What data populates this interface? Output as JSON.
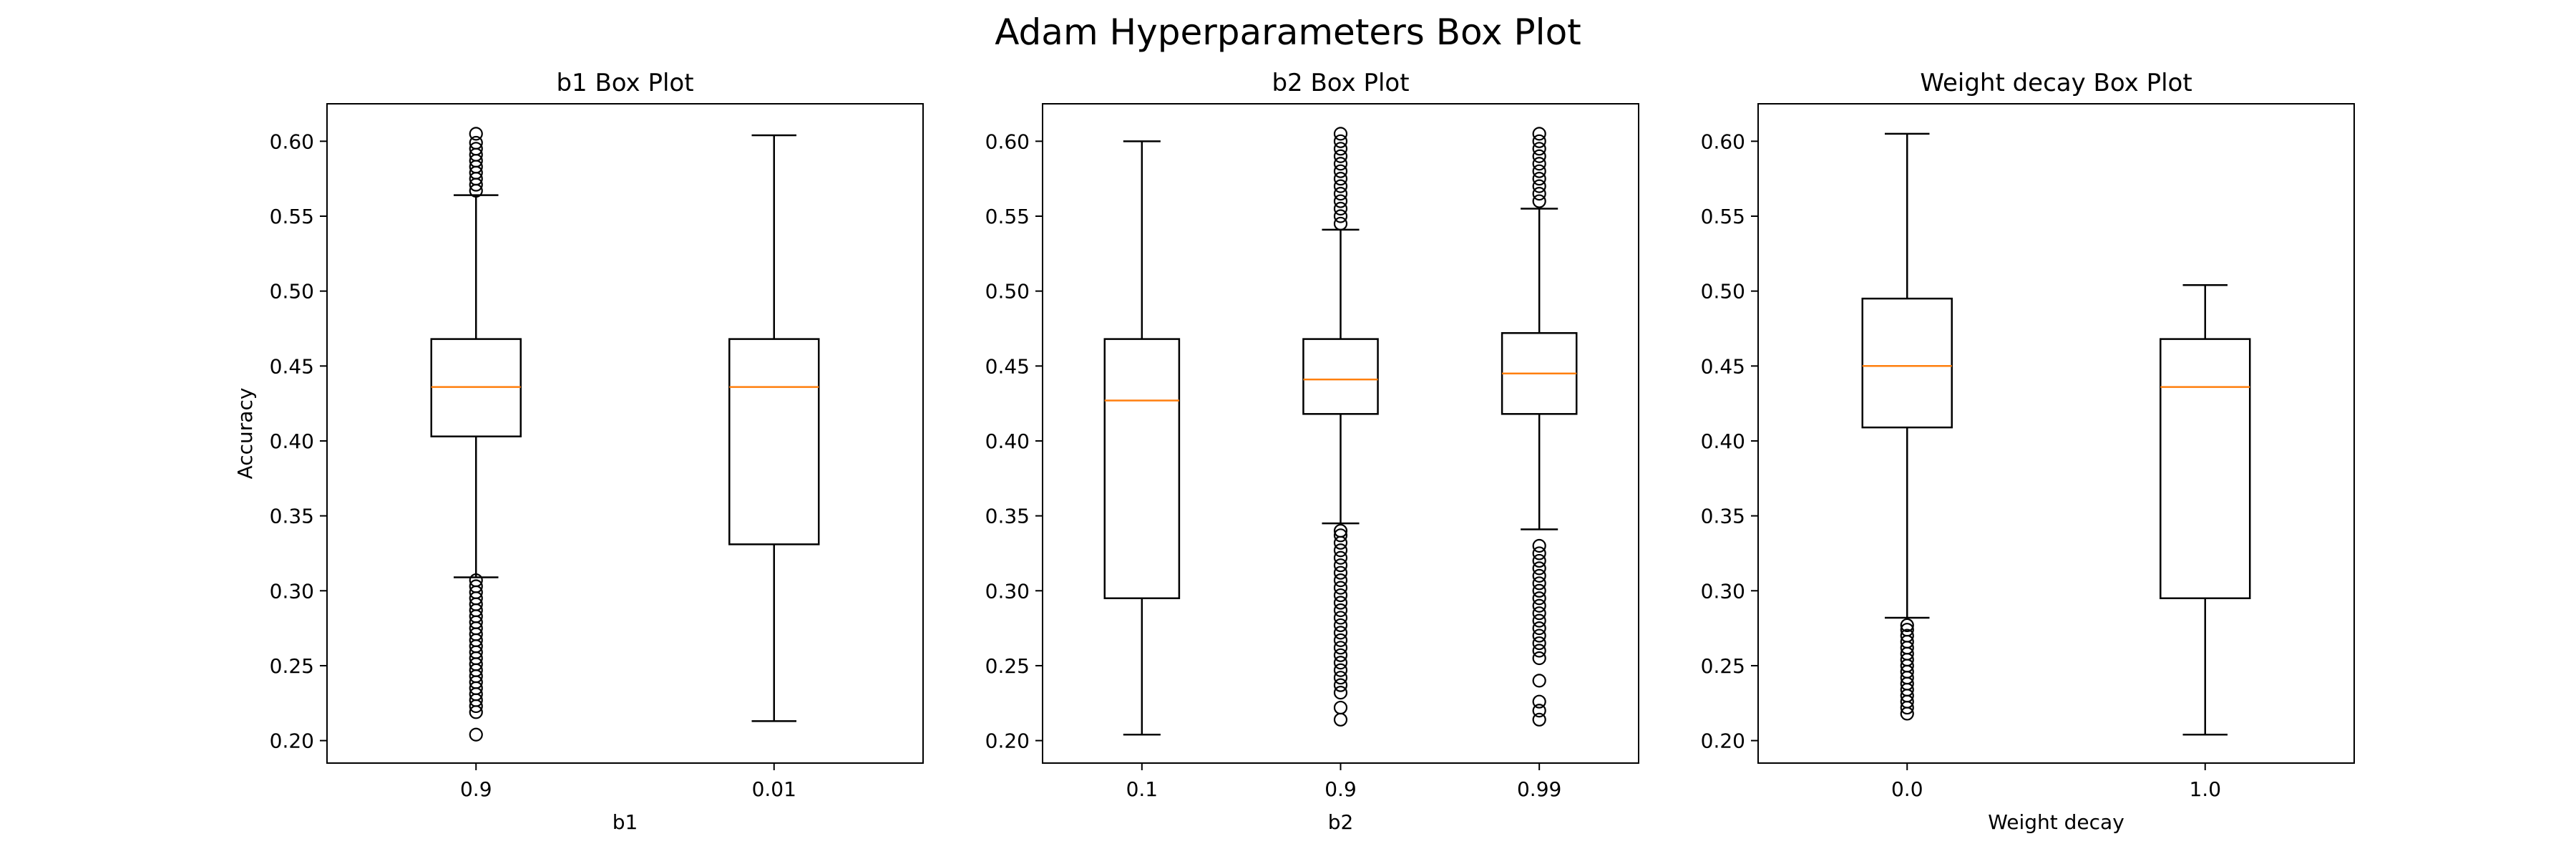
{
  "figure": {
    "title": "Adam Hyperparameters Box Plot",
    "colors": {
      "box": "#000000",
      "median": "#ff7f0e",
      "background": "#ffffff"
    }
  },
  "chart_data": [
    {
      "type": "box",
      "title": "b1 Box Plot",
      "xlabel": "b1",
      "ylabel": "Accuracy",
      "ylim": [
        0.185,
        0.625
      ],
      "yticks": [
        0.2,
        0.25,
        0.3,
        0.35,
        0.4,
        0.45,
        0.5,
        0.55,
        0.6
      ],
      "yticklabels": [
        "0.20",
        "0.25",
        "0.30",
        "0.35",
        "0.40",
        "0.45",
        "0.50",
        "0.55",
        "0.60"
      ],
      "categories": [
        "0.9",
        "0.01"
      ],
      "boxes": [
        {
          "whisker_low": 0.309,
          "q1": 0.403,
          "median": 0.436,
          "q3": 0.468,
          "whisker_high": 0.564,
          "outliers": [
            0.204,
            0.219,
            0.223,
            0.227,
            0.231,
            0.235,
            0.239,
            0.243,
            0.247,
            0.251,
            0.255,
            0.259,
            0.263,
            0.267,
            0.271,
            0.275,
            0.279,
            0.283,
            0.287,
            0.291,
            0.295,
            0.299,
            0.303,
            0.307,
            0.567,
            0.571,
            0.575,
            0.579,
            0.583,
            0.587,
            0.591,
            0.595,
            0.599,
            0.605
          ]
        },
        {
          "whisker_low": 0.213,
          "q1": 0.331,
          "median": 0.436,
          "q3": 0.468,
          "whisker_high": 0.604,
          "outliers": []
        }
      ]
    },
    {
      "type": "box",
      "title": "b2 Box Plot",
      "xlabel": "b2",
      "ylabel": "",
      "ylim": [
        0.185,
        0.625
      ],
      "yticks": [
        0.2,
        0.25,
        0.3,
        0.35,
        0.4,
        0.45,
        0.5,
        0.55,
        0.6
      ],
      "yticklabels": [
        "0.20",
        "0.25",
        "0.30",
        "0.35",
        "0.40",
        "0.45",
        "0.50",
        "0.55",
        "0.60"
      ],
      "categories": [
        "0.1",
        "0.9",
        "0.99"
      ],
      "boxes": [
        {
          "whisker_low": 0.204,
          "q1": 0.295,
          "median": 0.427,
          "q3": 0.468,
          "whisker_high": 0.6,
          "outliers": []
        },
        {
          "whisker_low": 0.345,
          "q1": 0.418,
          "median": 0.441,
          "q3": 0.468,
          "whisker_high": 0.541,
          "outliers": [
            0.214,
            0.222,
            0.232,
            0.237,
            0.242,
            0.247,
            0.252,
            0.257,
            0.262,
            0.267,
            0.272,
            0.277,
            0.282,
            0.287,
            0.292,
            0.297,
            0.302,
            0.307,
            0.312,
            0.317,
            0.322,
            0.327,
            0.332,
            0.337,
            0.34,
            0.545,
            0.55,
            0.555,
            0.56,
            0.565,
            0.57,
            0.575,
            0.58,
            0.585,
            0.59,
            0.595,
            0.6,
            0.605
          ]
        },
        {
          "whisker_low": 0.341,
          "q1": 0.418,
          "median": 0.445,
          "q3": 0.472,
          "whisker_high": 0.555,
          "outliers": [
            0.214,
            0.22,
            0.226,
            0.24,
            0.255,
            0.26,
            0.265,
            0.27,
            0.275,
            0.28,
            0.285,
            0.29,
            0.295,
            0.3,
            0.305,
            0.31,
            0.315,
            0.32,
            0.325,
            0.33,
            0.56,
            0.565,
            0.57,
            0.575,
            0.58,
            0.585,
            0.59,
            0.595,
            0.6,
            0.605
          ]
        }
      ]
    },
    {
      "type": "box",
      "title": "Weight decay Box Plot",
      "xlabel": "Weight decay",
      "ylabel": "",
      "ylim": [
        0.185,
        0.625
      ],
      "yticks": [
        0.2,
        0.25,
        0.3,
        0.35,
        0.4,
        0.45,
        0.5,
        0.55,
        0.6
      ],
      "yticklabels": [
        "0.20",
        "0.25",
        "0.30",
        "0.35",
        "0.40",
        "0.45",
        "0.50",
        "0.55",
        "0.60"
      ],
      "categories": [
        "0.0",
        "1.0"
      ],
      "boxes": [
        {
          "whisker_low": 0.282,
          "q1": 0.409,
          "median": 0.45,
          "q3": 0.495,
          "whisker_high": 0.605,
          "outliers": [
            0.218,
            0.222,
            0.226,
            0.23,
            0.234,
            0.238,
            0.242,
            0.246,
            0.25,
            0.254,
            0.258,
            0.262,
            0.266,
            0.27,
            0.274,
            0.277
          ]
        },
        {
          "whisker_low": 0.204,
          "q1": 0.295,
          "median": 0.436,
          "q3": 0.468,
          "whisker_high": 0.504,
          "outliers": []
        }
      ]
    }
  ]
}
